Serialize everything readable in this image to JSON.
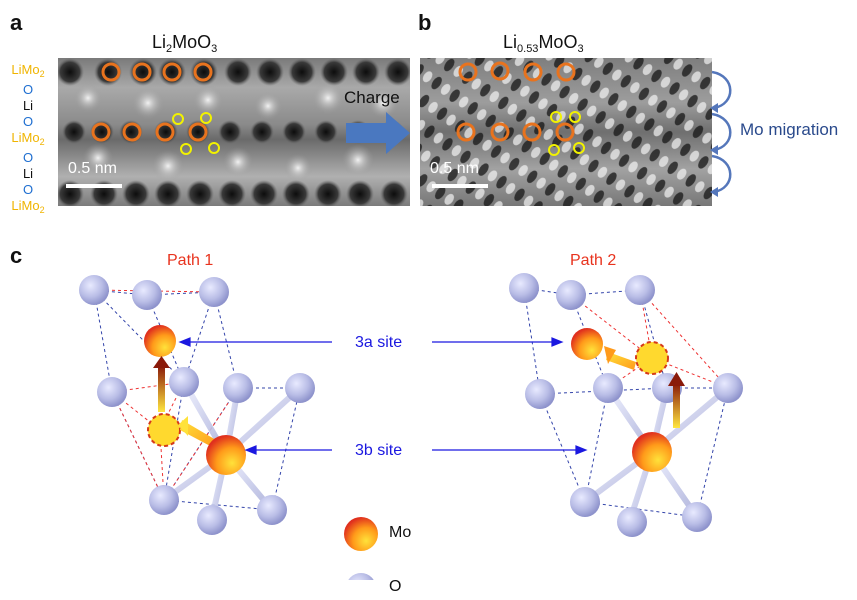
{
  "panels": {
    "a": {
      "letter": "a",
      "formula_base": "Li",
      "formula_sub1": "2",
      "formula_mid": "MoO",
      "formula_sub2": "3",
      "scale": "0.5 nm"
    },
    "b": {
      "letter": "b",
      "formula_base": "Li",
      "formula_sub1": "0.53",
      "formula_mid": "MoO",
      "formula_sub2": "3",
      "scale": "0.5 nm",
      "side_label": "Mo migration"
    },
    "c": {
      "letter": "c"
    }
  },
  "layers": [
    {
      "main": "LiMo",
      "sub": "2",
      "color": "#f0b400"
    },
    {
      "main": "O",
      "sub": "",
      "color": "#1f6fd1"
    },
    {
      "main": "Li",
      "sub": "",
      "color": "#111111"
    },
    {
      "main": "O",
      "sub": "",
      "color": "#1f6fd1"
    },
    {
      "main": "LiMo",
      "sub": "2",
      "color": "#f0b400"
    },
    {
      "main": "O",
      "sub": "",
      "color": "#1f6fd1"
    },
    {
      "main": "Li",
      "sub": "",
      "color": "#111111"
    },
    {
      "main": "O",
      "sub": "",
      "color": "#1f6fd1"
    },
    {
      "main": "LiMo",
      "sub": "2",
      "color": "#f0b400"
    }
  ],
  "arrow_label": "Charge",
  "path1": "Path 1",
  "path2": "Path 2",
  "site_3a": "3a site",
  "site_3b": "3b site",
  "legend": {
    "mo": "Mo",
    "o": "O"
  },
  "colors": {
    "path_title": "#e8331e",
    "site_label": "#1b18e0",
    "charge_arrow": "#4a78c0",
    "atom_o": "#b9bde6",
    "atom_mo_edge": "#e0301e",
    "atom_mo_center": "#ffe23a",
    "mark_ring_orange": "#e8731e",
    "mark_ring_yellow": "#f2f200"
  }
}
